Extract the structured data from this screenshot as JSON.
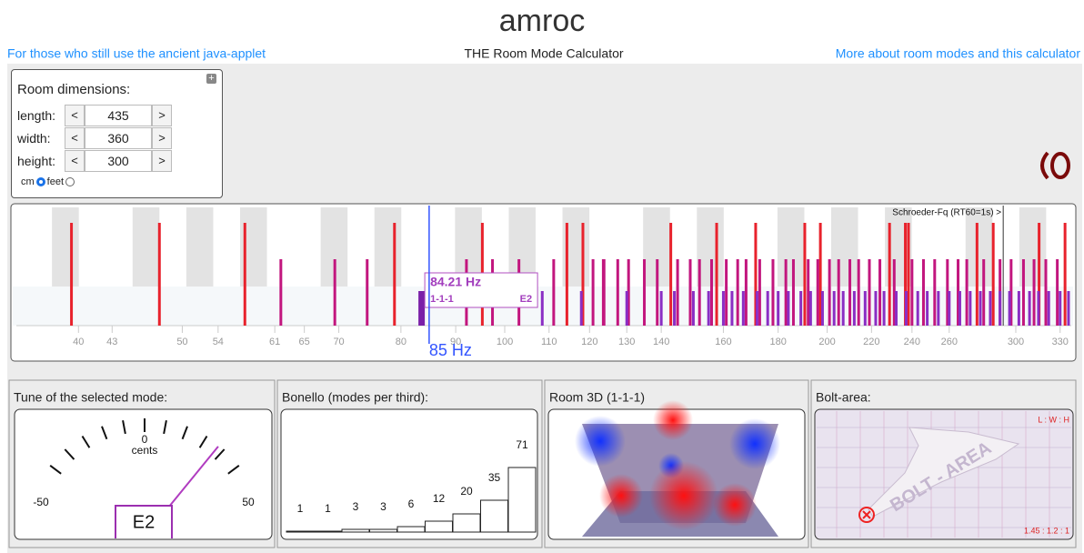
{
  "header": {
    "title": "amroc",
    "left_link": "For those who still use the ancient java-applet",
    "subtitle": "THE Room Mode Calculator",
    "right_link": "More about room modes and this calculator"
  },
  "room": {
    "heading": "Room dimensions:",
    "dec": "<",
    "inc": ">",
    "fields": [
      {
        "label": "length:",
        "value": 435
      },
      {
        "label": "width:",
        "value": 360
      },
      {
        "label": "height:",
        "value": 300
      }
    ],
    "units": [
      "cm",
      "feet"
    ],
    "selected_unit": 0
  },
  "spectrum": {
    "xlim": [
      35,
      338
    ],
    "log": true,
    "xticks": [
      40,
      43,
      50,
      54,
      61,
      65,
      70,
      80,
      90,
      100,
      110,
      120,
      130,
      140,
      160,
      180,
      200,
      220,
      240,
      260,
      300,
      330
    ],
    "schroeder": {
      "value": 292,
      "label": "Schroeder-Fq (RT60=1s) >"
    },
    "cursor": {
      "value": 85,
      "label": "85 Hz"
    },
    "selected": {
      "freq": {
        "value": 84.21,
        "label": "84.21 Hz"
      },
      "mode": "1-1-1",
      "note": "E2"
    },
    "mode_groups": [
      {
        "color": "#e8222c",
        "values": [
          39.4,
          47.6,
          57.2,
          78.9,
          95.3,
          114.3,
          118.3,
          142.9,
          157.7,
          171.5,
          190.6,
          197.1,
          228.7,
          236.6,
          238.2,
          276.0,
          285.8,
          315.4,
          333.5
        ]
      },
      {
        "color": "#c2167e",
        "values": [
          61.8,
          69.4,
          74.4,
          92.1,
          97.4,
          103.1,
          111.1,
          120.9,
          123.6,
          123.8,
          127.5,
          130.5,
          135,
          138.8,
          145,
          149,
          152,
          156,
          161,
          165,
          168,
          173,
          178,
          183,
          186,
          192,
          196,
          201,
          205,
          210,
          214,
          219,
          224,
          231,
          240,
          246,
          252,
          259,
          265,
          270,
          280,
          290,
          297,
          305,
          312,
          320,
          328
        ]
      },
      {
        "color": "#8a2ec4",
        "values": [
          108.4,
          117.9,
          130,
          140,
          144,
          150,
          155,
          160,
          163,
          167,
          172,
          176,
          180,
          184,
          189,
          193,
          198,
          203,
          207,
          212,
          217,
          222,
          226,
          232,
          237,
          243,
          248,
          254,
          260,
          266,
          272,
          278,
          284,
          290,
          296,
          302,
          309,
          315,
          322,
          330,
          336
        ]
      }
    ]
  },
  "tune": {
    "heading": "Tune of the selected mode:",
    "unit": "cents",
    "note": "E2",
    "lim": [
      -50,
      50
    ],
    "ticks": [
      -50,
      -40,
      -30,
      -20,
      -10,
      0,
      10,
      20,
      30,
      40,
      50
    ],
    "labels": [
      -50,
      0,
      50
    ],
    "needle": 37
  },
  "bonello": {
    "heading": "Bonello (modes per third):",
    "values": [
      1,
      1,
      3,
      3,
      6,
      12,
      20,
      35,
      71
    ]
  },
  "room3d": {
    "heading": "Room 3D (1-1-1)"
  },
  "bolt": {
    "heading": "Bolt-area:",
    "ratio_header": "L : W : H",
    "ratio": "1.45 : 1.2 : 1",
    "watermark": "BOLT - AREA"
  }
}
